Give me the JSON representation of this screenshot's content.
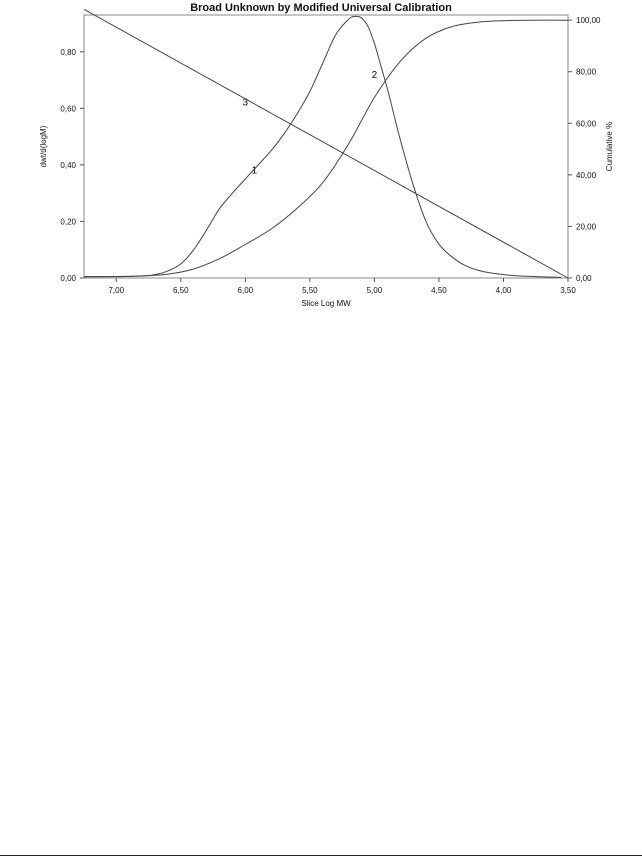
{
  "chart_data": {
    "type": "line",
    "title": "Broad Unknown by Modified Universal Calibration",
    "xlabel": "Slice Log MW",
    "ylabel_left": "dwt/d(logM)",
    "ylabel_right": "Cumulative %",
    "x_reversed": true,
    "xlim": [
      7.25,
      3.5
    ],
    "ylim_left": [
      0,
      0.93
    ],
    "ylim_right": [
      0,
      102
    ],
    "x_ticks": [
      "7,00",
      "6,50",
      "6,00",
      "5,50",
      "5,00",
      "4,50",
      "4,00",
      "3,50"
    ],
    "x_tick_values": [
      7.0,
      6.5,
      6.0,
      5.5,
      5.0,
      4.5,
      4.0,
      3.5
    ],
    "y_left_ticks": [
      "0,00",
      "0,20",
      "0,40",
      "0,60",
      "0,80"
    ],
    "y_left_tick_values": [
      0,
      0.2,
      0.4,
      0.6,
      0.8
    ],
    "y_right_ticks": [
      "0,00",
      "20,00",
      "40,00",
      "60,00",
      "80,00",
      "100,00"
    ],
    "y_right_tick_values": [
      0,
      20,
      40,
      60,
      80,
      100
    ],
    "grid": false,
    "series": [
      {
        "label": "1",
        "axis": "left",
        "x": [
          7.25,
          7.0,
          6.8,
          6.7,
          6.6,
          6.5,
          6.4,
          6.3,
          6.2,
          6.1,
          6.0,
          5.9,
          5.8,
          5.7,
          5.6,
          5.5,
          5.4,
          5.3,
          5.2,
          5.15,
          5.1,
          5.05,
          5.0,
          4.95,
          4.9,
          4.85,
          4.8,
          4.7,
          4.6,
          4.5,
          4.4,
          4.3,
          4.2,
          4.1,
          4.0,
          3.9,
          3.75,
          3.55
        ],
        "y": [
          0.005,
          0.005,
          0.007,
          0.012,
          0.025,
          0.05,
          0.1,
          0.17,
          0.245,
          0.3,
          0.35,
          0.4,
          0.45,
          0.51,
          0.58,
          0.66,
          0.76,
          0.86,
          0.915,
          0.925,
          0.92,
          0.89,
          0.83,
          0.75,
          0.67,
          0.58,
          0.49,
          0.33,
          0.2,
          0.12,
          0.075,
          0.045,
          0.028,
          0.018,
          0.012,
          0.008,
          0.005,
          0.002
        ]
      },
      {
        "label": "2",
        "axis": "right",
        "x": [
          7.25,
          7.0,
          6.8,
          6.6,
          6.4,
          6.2,
          6.0,
          5.8,
          5.6,
          5.4,
          5.2,
          5.0,
          4.8,
          4.6,
          4.4,
          4.2,
          4.0,
          3.8,
          3.5
        ],
        "y": [
          0.5,
          0.6,
          0.8,
          1.5,
          3.5,
          7.5,
          13,
          19,
          27,
          37,
          52,
          70,
          84,
          93,
          97.5,
          99.2,
          99.8,
          100,
          100
        ]
      },
      {
        "label": "3",
        "axis": "left",
        "x": [
          7.25,
          3.5
        ],
        "y": [
          0.95,
          0.0
        ]
      }
    ]
  }
}
